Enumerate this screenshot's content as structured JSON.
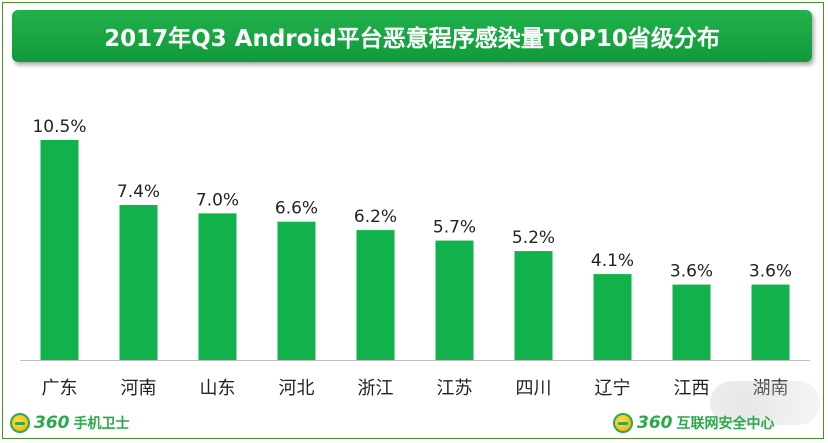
{
  "title": "2017年Q3 Android平台恶意程序感染量TOP10省级分布",
  "brand_left": {
    "number": "360",
    "name": "手机卫士"
  },
  "brand_right": {
    "number": "360",
    "name": "互联网安全中心"
  },
  "colors": {
    "bar": "#11b24b",
    "title_bg": "#1aa944",
    "title_text": "#ffffff",
    "brand": "#2aa84a",
    "frame": "#4a8f2c"
  },
  "chart_data": {
    "type": "bar",
    "title": "2017年Q3 Android平台恶意程序感染量TOP10省级分布",
    "categories": [
      "广东",
      "河南",
      "山东",
      "河北",
      "浙江",
      "江苏",
      "四川",
      "辽宁",
      "江西",
      "湖南"
    ],
    "values": [
      10.5,
      7.4,
      7.0,
      6.6,
      6.2,
      5.7,
      5.2,
      4.1,
      3.6,
      3.6
    ],
    "value_labels": [
      "10.5%",
      "7.4%",
      "7.0%",
      "6.6%",
      "6.2%",
      "5.7%",
      "5.2%",
      "4.1%",
      "3.6%",
      "3.6%"
    ],
    "unit": "%",
    "xlabel": "",
    "ylabel": "",
    "ylim": [
      0,
      10.5
    ],
    "grid": false,
    "legend": "none"
  }
}
